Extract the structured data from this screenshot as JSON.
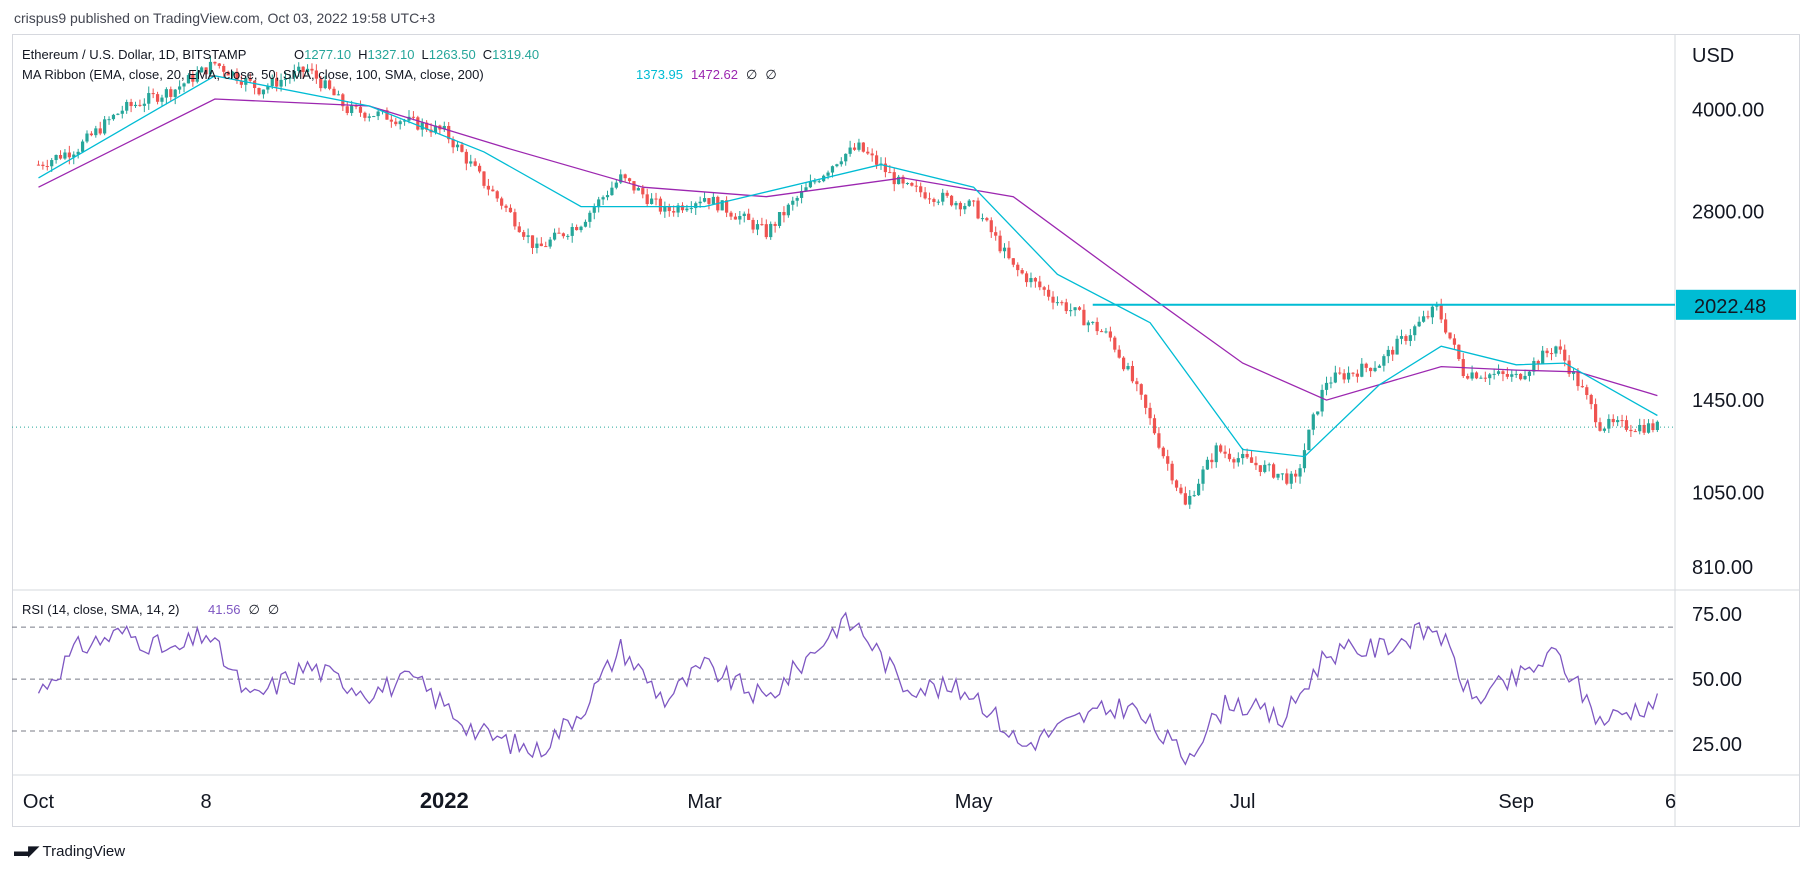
{
  "publisher": "crispus9 published on TradingView.com, Oct 03, 2022 19:58 UTC+3",
  "footer": "TradingView",
  "legend": {
    "symbol": "Ethereum / U.S. Dollar, 1D, BITSTAMP",
    "o_label": "O",
    "o_value": "1277.10",
    "h_label": "H",
    "h_value": "1327.10",
    "l_label": "L",
    "l_value": "1263.50",
    "c_label": "C",
    "c_value": "1319.40",
    "ma_label": "MA Ribbon (EMA, close, 20, EMA, close, 50, SMA, close, 100, SMA, close, 200)",
    "ma_v1": "1373.95",
    "ma_v2": "1472.62",
    "ma_v3": "∅",
    "ma_v4": "∅",
    "rsi_label": "RSI (14, close, SMA, 14, 2)",
    "rsi_value": "41.56",
    "rsi_v2": "∅",
    "rsi_v3": "∅"
  },
  "colors": {
    "up": "#26a69a",
    "down": "#ef5350",
    "ema20": "#00bcd4",
    "ema50": "#9c27b0",
    "rsi": "#7e57c2",
    "level": "#00bcd4"
  },
  "chart_data": [
    {
      "type": "candlestick",
      "title": "Ethereum / U.S. Dollar, 1D, BITSTAMP",
      "y_unit": "USD",
      "y_scale": "log",
      "y_ticks": [
        "4000.00",
        "2800.00",
        "1450.00",
        "1050.00",
        "810.00"
      ],
      "x_ticks": [
        "Oct",
        "8",
        "2022",
        "Mar",
        "May",
        "Jul",
        "Sep",
        "6"
      ],
      "ylim": [
        760,
        5100
      ],
      "horizontal_level": {
        "value": 2022.48,
        "label": "2022.48"
      },
      "last_close": 1319.4,
      "series_close": [
        {
          "x": "2021-10-01",
          "y": 3300
        },
        {
          "x": "2021-10-10",
          "y": 3500
        },
        {
          "x": "2021-10-20",
          "y": 4000
        },
        {
          "x": "2021-11-01",
          "y": 4300
        },
        {
          "x": "2021-11-10",
          "y": 4700
        },
        {
          "x": "2021-11-20",
          "y": 4300
        },
        {
          "x": "2021-12-01",
          "y": 4600
        },
        {
          "x": "2021-12-10",
          "y": 4000
        },
        {
          "x": "2021-12-20",
          "y": 3900
        },
        {
          "x": "2022-01-01",
          "y": 3700
        },
        {
          "x": "2022-01-10",
          "y": 3100
        },
        {
          "x": "2022-01-22",
          "y": 2450
        },
        {
          "x": "2022-02-01",
          "y": 2700
        },
        {
          "x": "2022-02-10",
          "y": 3150
        },
        {
          "x": "2022-02-20",
          "y": 2800
        },
        {
          "x": "2022-03-01",
          "y": 2950
        },
        {
          "x": "2022-03-15",
          "y": 2600
        },
        {
          "x": "2022-04-01",
          "y": 3400
        },
        {
          "x": "2022-04-05",
          "y": 3500
        },
        {
          "x": "2022-04-15",
          "y": 3050
        },
        {
          "x": "2022-05-01",
          "y": 2850
        },
        {
          "x": "2022-05-10",
          "y": 2300
        },
        {
          "x": "2022-05-20",
          "y": 2050
        },
        {
          "x": "2022-06-01",
          "y": 1800
        },
        {
          "x": "2022-06-13",
          "y": 1200
        },
        {
          "x": "2022-06-18",
          "y": 1000
        },
        {
          "x": "2022-06-25",
          "y": 1220
        },
        {
          "x": "2022-07-05",
          "y": 1150
        },
        {
          "x": "2022-07-13",
          "y": 1090
        },
        {
          "x": "2022-07-20",
          "y": 1550
        },
        {
          "x": "2022-08-01",
          "y": 1650
        },
        {
          "x": "2022-08-14",
          "y": 2000
        },
        {
          "x": "2022-08-20",
          "y": 1600
        },
        {
          "x": "2022-09-01",
          "y": 1570
        },
        {
          "x": "2022-09-10",
          "y": 1750
        },
        {
          "x": "2022-09-20",
          "y": 1330
        },
        {
          "x": "2022-10-03",
          "y": 1319.4
        }
      ],
      "ema20": [
        {
          "x": "2021-10-01",
          "y": 3150
        },
        {
          "x": "2021-11-10",
          "y": 4500
        },
        {
          "x": "2021-12-15",
          "y": 4050
        },
        {
          "x": "2022-01-10",
          "y": 3450
        },
        {
          "x": "2022-02-01",
          "y": 2850
        },
        {
          "x": "2022-03-01",
          "y": 2850
        },
        {
          "x": "2022-04-10",
          "y": 3300
        },
        {
          "x": "2022-05-01",
          "y": 3050
        },
        {
          "x": "2022-05-20",
          "y": 2250
        },
        {
          "x": "2022-06-10",
          "y": 1900
        },
        {
          "x": "2022-07-01",
          "y": 1220
        },
        {
          "x": "2022-07-15",
          "y": 1190
        },
        {
          "x": "2022-08-01",
          "y": 1530
        },
        {
          "x": "2022-08-15",
          "y": 1750
        },
        {
          "x": "2022-09-01",
          "y": 1640
        },
        {
          "x": "2022-09-12",
          "y": 1650
        },
        {
          "x": "2022-10-03",
          "y": 1373.95
        }
      ],
      "ema50": [
        {
          "x": "2021-10-01",
          "y": 3050
        },
        {
          "x": "2021-11-10",
          "y": 4150
        },
        {
          "x": "2021-12-15",
          "y": 4050
        },
        {
          "x": "2022-01-15",
          "y": 3500
        },
        {
          "x": "2022-02-15",
          "y": 3050
        },
        {
          "x": "2022-03-15",
          "y": 2950
        },
        {
          "x": "2022-04-15",
          "y": 3150
        },
        {
          "x": "2022-05-10",
          "y": 2950
        },
        {
          "x": "2022-06-01",
          "y": 2300
        },
        {
          "x": "2022-07-01",
          "y": 1650
        },
        {
          "x": "2022-07-20",
          "y": 1450
        },
        {
          "x": "2022-08-15",
          "y": 1630
        },
        {
          "x": "2022-09-01",
          "y": 1610
        },
        {
          "x": "2022-09-15",
          "y": 1600
        },
        {
          "x": "2022-10-03",
          "y": 1472.62
        }
      ]
    },
    {
      "type": "line",
      "title": "RSI (14, close, SMA, 14, 2)",
      "y_ticks": [
        "75.00",
        "50.00",
        "25.00"
      ],
      "ylim": [
        15,
        82
      ],
      "levels": [
        70,
        50,
        30
      ],
      "series": [
        {
          "name": "RSI",
          "values": [
            {
              "x": "2021-10-01",
              "y": 45
            },
            {
              "x": "2021-10-10",
              "y": 62
            },
            {
              "x": "2021-10-20",
              "y": 68
            },
            {
              "x": "2021-11-01",
              "y": 60
            },
            {
              "x": "2021-11-08",
              "y": 68
            },
            {
              "x": "2021-11-18",
              "y": 42
            },
            {
              "x": "2021-12-01",
              "y": 55
            },
            {
              "x": "2021-12-15",
              "y": 45
            },
            {
              "x": "2021-12-25",
              "y": 50
            },
            {
              "x": "2022-01-08",
              "y": 30
            },
            {
              "x": "2022-01-22",
              "y": 22
            },
            {
              "x": "2022-02-01",
              "y": 38
            },
            {
              "x": "2022-02-10",
              "y": 62
            },
            {
              "x": "2022-02-20",
              "y": 42
            },
            {
              "x": "2022-03-01",
              "y": 55
            },
            {
              "x": "2022-03-15",
              "y": 42
            },
            {
              "x": "2022-04-01",
              "y": 72
            },
            {
              "x": "2022-04-05",
              "y": 70
            },
            {
              "x": "2022-04-15",
              "y": 48
            },
            {
              "x": "2022-05-01",
              "y": 45
            },
            {
              "x": "2022-05-12",
              "y": 24
            },
            {
              "x": "2022-05-25",
              "y": 35
            },
            {
              "x": "2022-06-05",
              "y": 40
            },
            {
              "x": "2022-06-18",
              "y": 20
            },
            {
              "x": "2022-06-28",
              "y": 42
            },
            {
              "x": "2022-07-10",
              "y": 34
            },
            {
              "x": "2022-07-20",
              "y": 60
            },
            {
              "x": "2022-08-01",
              "y": 62
            },
            {
              "x": "2022-08-14",
              "y": 70
            },
            {
              "x": "2022-08-22",
              "y": 42
            },
            {
              "x": "2022-09-01",
              "y": 50
            },
            {
              "x": "2022-09-10",
              "y": 60
            },
            {
              "x": "2022-09-20",
              "y": 34
            },
            {
              "x": "2022-10-03",
              "y": 41.56
            }
          ]
        }
      ]
    }
  ]
}
